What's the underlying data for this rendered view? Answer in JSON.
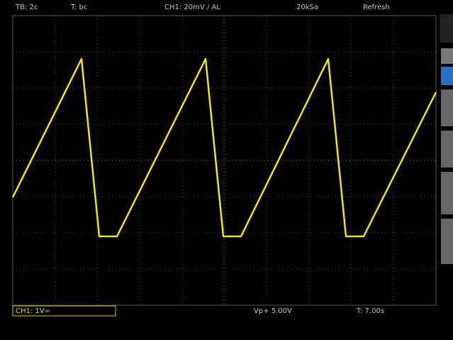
{
  "status_bar": {
    "timebase": "TB: 2c",
    "trigger": "T: bc",
    "channel": "CH1: 20mV / AL",
    "sample_rate": "20kSa",
    "mode": "Refresh"
  },
  "footer": {
    "channel_scale": "CH1: 1V=",
    "measurement": "Vp+ 5.00V",
    "time": "T: 7.00s"
  }
}
